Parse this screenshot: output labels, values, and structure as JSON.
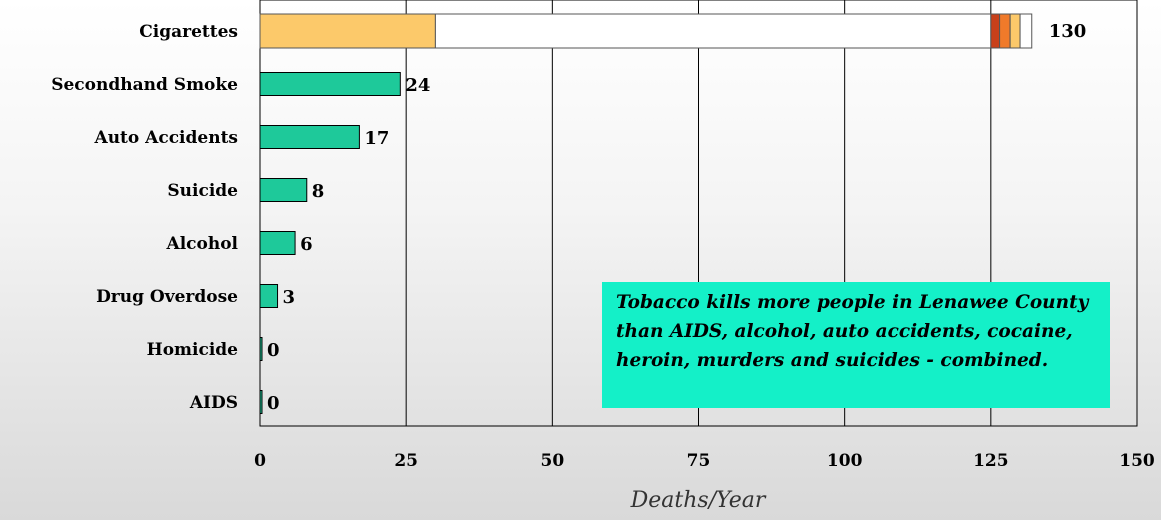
{
  "chart_data": {
    "type": "bar",
    "orientation": "horizontal",
    "categories": [
      "Cigarettes",
      "Secondhand Smoke",
      "Auto Accidents",
      "Suicide",
      "Alcohol",
      "Drug Overdose",
      "Homicide",
      "AIDS"
    ],
    "values": [
      130,
      24,
      17,
      8,
      6,
      3,
      0,
      0
    ],
    "value_labels": [
      "130",
      "24",
      "17",
      "8",
      "6",
      "3",
      "0",
      "0"
    ],
    "cigarette_segments": [
      {
        "value": 30,
        "color": "#fcc96a"
      },
      {
        "value": 95,
        "color": "#ffffff"
      },
      {
        "value": 1.5,
        "color": "#c8401a"
      },
      {
        "value": 1.8,
        "color": "#f07a2a"
      },
      {
        "value": 1.7,
        "color": "#fcc96a"
      },
      {
        "value": 2,
        "color": "#ffffff"
      }
    ],
    "bar_color": "#1ec99a",
    "xlim": [
      0,
      150
    ],
    "xticks": [
      0,
      25,
      50,
      75,
      100,
      125,
      150
    ],
    "xlabel": "Deaths/Year",
    "ylabel": "",
    "grid": "vertical",
    "annotation": "Tobacco kills more people in Lenawee County than AIDS, alcohol, auto accidents, cocaine, heroin, murders and suicides - combined.",
    "annotation_color": "#14f0c8"
  }
}
